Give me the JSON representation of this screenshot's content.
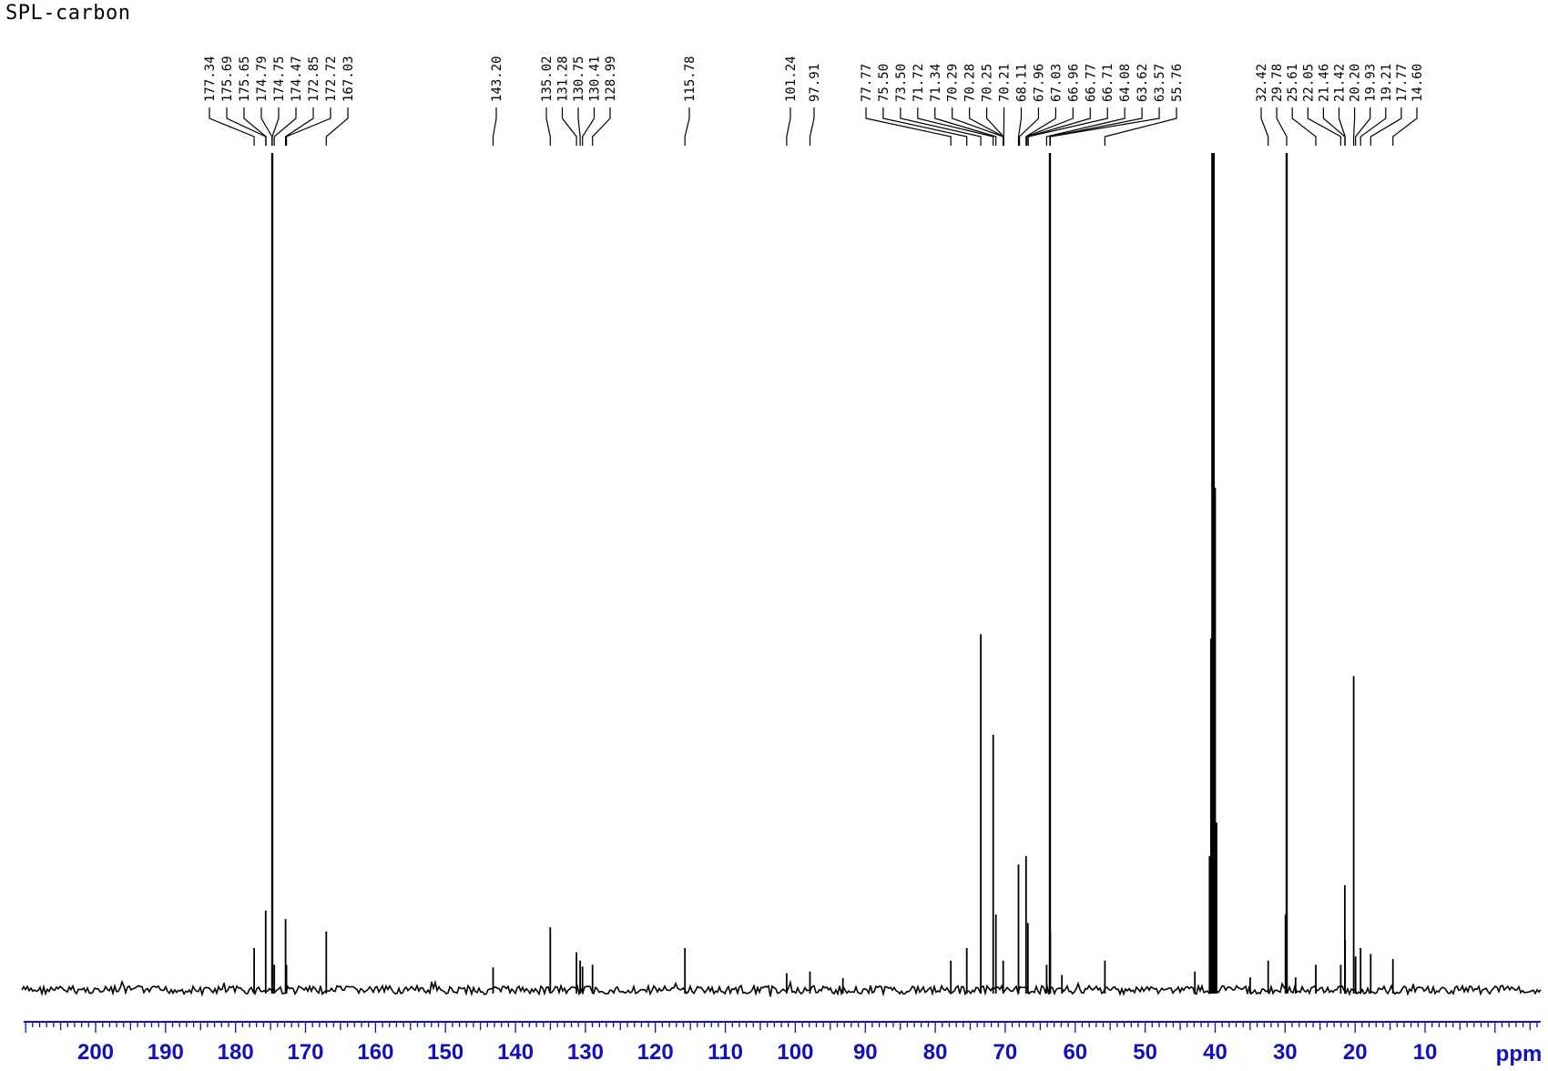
{
  "title": "SPL-carbon",
  "chart_data": {
    "type": "line",
    "title": "SPL-carbon",
    "xlabel": "ppm",
    "xlim": [
      210,
      -2
    ],
    "x_axis_reversed": true,
    "x_ticks": [
      200,
      190,
      180,
      170,
      160,
      150,
      140,
      130,
      120,
      110,
      100,
      90,
      80,
      70,
      60,
      50,
      40,
      30,
      20,
      10
    ],
    "grid": false,
    "line_color": "#000000",
    "axis_color": "#1010c0",
    "peak_labels": [
      "177.34",
      "175.69",
      "175.65",
      "174.79",
      "174.75",
      "174.47",
      "172.85",
      "172.72",
      "167.03",
      "143.20",
      "135.02",
      "131.28",
      "130.75",
      "130.41",
      "128.99",
      "115.78",
      "101.24",
      "97.91",
      "77.77",
      "75.50",
      "73.50",
      "71.72",
      "71.34",
      "70.29",
      "70.28",
      "70.25",
      "70.21",
      "68.11",
      "67.96",
      "67.03",
      "66.96",
      "66.77",
      "66.71",
      "64.08",
      "63.62",
      "63.57",
      "55.76",
      "32.42",
      "29.78",
      "25.61",
      "22.05",
      "21.46",
      "21.42",
      "20.20",
      "19.93",
      "19.21",
      "17.77",
      "14.60"
    ],
    "peaks": [
      {
        "ppm": 177.34,
        "intensity": 0.05
      },
      {
        "ppm": 175.69,
        "intensity": 0.095
      },
      {
        "ppm": 174.75,
        "intensity": 1.0
      },
      {
        "ppm": 174.47,
        "intensity": 0.03
      },
      {
        "ppm": 172.85,
        "intensity": 0.085
      },
      {
        "ppm": 172.72,
        "intensity": 0.03
      },
      {
        "ppm": 167.03,
        "intensity": 0.07
      },
      {
        "ppm": 143.2,
        "intensity": 0.027
      },
      {
        "ppm": 135.02,
        "intensity": 0.075
      },
      {
        "ppm": 131.28,
        "intensity": 0.045
      },
      {
        "ppm": 130.75,
        "intensity": 0.035
      },
      {
        "ppm": 130.41,
        "intensity": 0.028
      },
      {
        "ppm": 128.99,
        "intensity": 0.03
      },
      {
        "ppm": 115.78,
        "intensity": 0.05
      },
      {
        "ppm": 101.24,
        "intensity": 0.02
      },
      {
        "ppm": 97.91,
        "intensity": 0.022
      },
      {
        "ppm": 93.2,
        "intensity": 0.014
      },
      {
        "ppm": 77.77,
        "intensity": 0.035
      },
      {
        "ppm": 75.5,
        "intensity": 0.05
      },
      {
        "ppm": 73.5,
        "intensity": 0.425
      },
      {
        "ppm": 71.72,
        "intensity": 0.305
      },
      {
        "ppm": 71.34,
        "intensity": 0.09
      },
      {
        "ppm": 70.29,
        "intensity": 0.035
      },
      {
        "ppm": 68.11,
        "intensity": 0.15
      },
      {
        "ppm": 67.03,
        "intensity": 0.16
      },
      {
        "ppm": 66.77,
        "intensity": 0.08
      },
      {
        "ppm": 64.08,
        "intensity": 0.03
      },
      {
        "ppm": 63.62,
        "intensity": 1.0
      },
      {
        "ppm": 63.57,
        "intensity": 0.07
      },
      {
        "ppm": 61.9,
        "intensity": 0.018
      },
      {
        "ppm": 55.76,
        "intensity": 0.035
      },
      {
        "ppm": 42.9,
        "intensity": 0.022
      },
      {
        "ppm": 40.8,
        "intensity": 0.16
      },
      {
        "ppm": 40.6,
        "intensity": 0.42
      },
      {
        "ppm": 40.4,
        "intensity": 1.0
      },
      {
        "ppm": 40.2,
        "intensity": 1.0
      },
      {
        "ppm": 40.0,
        "intensity": 0.6
      },
      {
        "ppm": 39.8,
        "intensity": 0.2
      },
      {
        "ppm": 35.0,
        "intensity": 0.015
      },
      {
        "ppm": 32.42,
        "intensity": 0.035
      },
      {
        "ppm": 29.78,
        "intensity": 1.0
      },
      {
        "ppm": 29.95,
        "intensity": 0.09
      },
      {
        "ppm": 28.5,
        "intensity": 0.015
      },
      {
        "ppm": 25.61,
        "intensity": 0.03
      },
      {
        "ppm": 22.05,
        "intensity": 0.03
      },
      {
        "ppm": 21.46,
        "intensity": 0.125
      },
      {
        "ppm": 21.42,
        "intensity": 0.06
      },
      {
        "ppm": 20.2,
        "intensity": 0.375
      },
      {
        "ppm": 19.93,
        "intensity": 0.04
      },
      {
        "ppm": 19.21,
        "intensity": 0.05
      },
      {
        "ppm": 17.77,
        "intensity": 0.043
      },
      {
        "ppm": 14.6,
        "intensity": 0.037
      }
    ]
  }
}
